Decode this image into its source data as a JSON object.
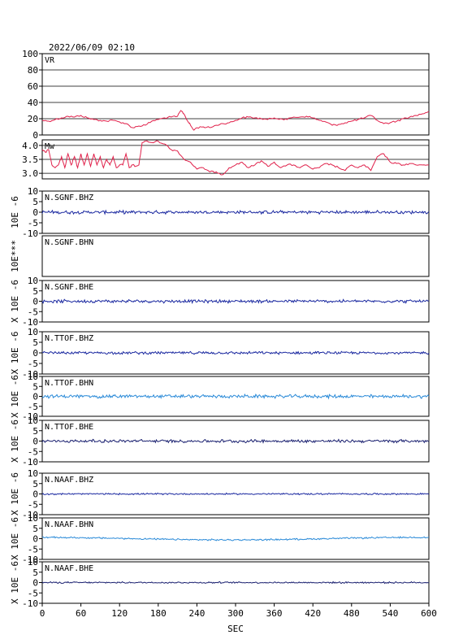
{
  "header": {
    "timestamp": "2022/06/09 02:10"
  },
  "chart_data": {
    "type": "line",
    "x_axis": {
      "label": "SEC",
      "range": [
        0,
        600
      ],
      "ticks": [
        "0",
        "60",
        "120",
        "180",
        "240",
        "300",
        "360",
        "420",
        "480",
        "540",
        "600"
      ]
    },
    "panels": [
      {
        "id": "vr",
        "label": "VR",
        "ylim": [
          0,
          100
        ],
        "ticks": [
          "0",
          "20",
          "40",
          "60",
          "80",
          "100"
        ],
        "tick_values": [
          0,
          20,
          40,
          60,
          80,
          100
        ],
        "grid": true,
        "color": "#e0204a",
        "x": [
          0,
          10,
          20,
          30,
          40,
          50,
          60,
          70,
          80,
          90,
          100,
          110,
          120,
          130,
          140,
          150,
          160,
          170,
          180,
          190,
          200,
          210,
          215,
          220,
          225,
          230,
          235,
          240,
          250,
          260,
          270,
          280,
          290,
          300,
          310,
          320,
          330,
          340,
          350,
          360,
          370,
          380,
          390,
          400,
          410,
          420,
          430,
          440,
          450,
          460,
          470,
          480,
          490,
          500,
          510,
          520,
          530,
          540,
          550,
          560,
          570,
          580,
          590,
          600
        ],
        "values": [
          18,
          17,
          19,
          21,
          23,
          22,
          24,
          21,
          19,
          18,
          17,
          18,
          16,
          14,
          9,
          11,
          12,
          17,
          19,
          21,
          22,
          23,
          30,
          26,
          18,
          12,
          6,
          9,
          10,
          9,
          12,
          14,
          15,
          18,
          21,
          22,
          21,
          20,
          19,
          21,
          20,
          19,
          22,
          22,
          23,
          21,
          18,
          16,
          12,
          13,
          15,
          17,
          19,
          21,
          24,
          18,
          14,
          15,
          17,
          20,
          22,
          24,
          26,
          29
        ]
      },
      {
        "id": "mw",
        "label": "Mw",
        "ylim": [
          2.8,
          4.2
        ],
        "ticks": [
          "3.0",
          "3.5",
          "4.0"
        ],
        "tick_values": [
          3.0,
          3.5,
          4.0
        ],
        "grid": true,
        "color": "#e0204a",
        "x": [
          0,
          5,
          10,
          15,
          20,
          25,
          30,
          35,
          40,
          45,
          50,
          55,
          60,
          65,
          70,
          75,
          80,
          85,
          90,
          95,
          100,
          105,
          110,
          115,
          120,
          125,
          130,
          135,
          140,
          145,
          150,
          155,
          160,
          170,
          180,
          190,
          200,
          210,
          220,
          230,
          240,
          250,
          260,
          270,
          280,
          290,
          300,
          310,
          320,
          330,
          340,
          350,
          360,
          370,
          380,
          390,
          400,
          410,
          420,
          430,
          440,
          450,
          460,
          470,
          480,
          490,
          500,
          510,
          520,
          530,
          540,
          550,
          560,
          570,
          580,
          590,
          600
        ],
        "values": [
          3.85,
          3.75,
          3.85,
          3.3,
          3.2,
          3.3,
          3.6,
          3.2,
          3.7,
          3.3,
          3.6,
          3.2,
          3.7,
          3.3,
          3.7,
          3.25,
          3.7,
          3.3,
          3.6,
          3.2,
          3.5,
          3.3,
          3.6,
          3.2,
          3.3,
          3.3,
          3.7,
          3.2,
          3.3,
          3.25,
          3.3,
          4.1,
          4.15,
          4.1,
          4.15,
          4.05,
          3.85,
          3.8,
          3.5,
          3.4,
          3.15,
          3.2,
          3.05,
          3.05,
          2.95,
          3.2,
          3.3,
          3.4,
          3.2,
          3.3,
          3.45,
          3.25,
          3.4,
          3.2,
          3.3,
          3.3,
          3.2,
          3.3,
          3.15,
          3.2,
          3.35,
          3.3,
          3.2,
          3.1,
          3.3,
          3.2,
          3.3,
          3.1,
          3.6,
          3.7,
          3.4,
          3.35,
          3.3,
          3.35,
          3.3,
          3.3,
          3.3
        ]
      },
      {
        "id": "sgnf-bhz",
        "label": "N.SGNF.BHZ",
        "ylim": [
          -10,
          10
        ],
        "ylabel": "10E -6",
        "ticks": [
          "-10",
          "-5",
          "0",
          "5",
          "10"
        ],
        "tick_values": [
          -10,
          -5,
          0,
          5,
          10
        ],
        "color": "#1a28a0",
        "amplitude": 0.6,
        "offset": 0
      },
      {
        "id": "sgnf-bhn",
        "label": "N.SGNF.BHN",
        "ylim": [
          -10,
          10
        ],
        "ylabel": "10E***",
        "ticks": [],
        "tick_values": [],
        "color": "#1a28a0",
        "amplitude": 0,
        "offset": 0,
        "empty": true
      },
      {
        "id": "sgnf-bhe",
        "label": "N.SGNF.BHE",
        "ylim": [
          -10,
          10
        ],
        "ylabel": "X 10E -6",
        "ticks": [
          "-10",
          "-5",
          "0",
          "5",
          "10"
        ],
        "tick_values": [
          -10,
          -5,
          0,
          5,
          10
        ],
        "color": "#1a28a0",
        "amplitude": 0.6,
        "offset": 0
      },
      {
        "id": "ttof-bhz",
        "label": "N.TTOF.BHZ",
        "ylim": [
          -10,
          10
        ],
        "ylabel": "X 10E -6",
        "ticks": [
          "-10",
          "-5",
          "0",
          "5",
          "10"
        ],
        "tick_values": [
          -10,
          -5,
          0,
          5,
          10
        ],
        "color": "#1a28a0",
        "amplitude": 0.5,
        "offset": 0
      },
      {
        "id": "ttof-bhn",
        "label": "N.TTOF.BHN",
        "ylim": [
          -10,
          10
        ],
        "ylabel": "X 10E -6",
        "ticks": [
          "-10",
          "-5",
          "0",
          "5",
          "10"
        ],
        "tick_values": [
          -10,
          -5,
          0,
          5,
          10
        ],
        "color": "#2a8ad8",
        "amplitude": 0.7,
        "offset": 0
      },
      {
        "id": "ttof-bhe",
        "label": "N.TTOF.BHE",
        "ylim": [
          -10,
          10
        ],
        "ylabel": "X 10E -6",
        "ticks": [
          "-10",
          "-5",
          "0",
          "5",
          "10"
        ],
        "tick_values": [
          -10,
          -5,
          0,
          5,
          10
        ],
        "color": "#1a2070",
        "amplitude": 0.6,
        "offset": 0
      },
      {
        "id": "naaf-bhz",
        "label": "N.NAAF.BHZ",
        "ylim": [
          -10,
          10
        ],
        "ylabel": "X 10E -6",
        "ticks": [
          "-10",
          "-5",
          "0",
          "5",
          "10"
        ],
        "tick_values": [
          -10,
          -5,
          0,
          5,
          10
        ],
        "color": "#1a28a0",
        "amplitude": 0.3,
        "offset": 0
      },
      {
        "id": "naaf-bhn",
        "label": "N.NAAF.BHN",
        "ylim": [
          -10,
          10
        ],
        "ylabel": "X 10E -6",
        "ticks": [
          "-10",
          "-5",
          "0",
          "5",
          "10"
        ],
        "tick_values": [
          -10,
          -5,
          0,
          5,
          10
        ],
        "color": "#2a8ad8",
        "amplitude": 0.3,
        "offset": 0,
        "drift": true
      },
      {
        "id": "naaf-bhe",
        "label": "N.NAAF.BHE",
        "ylim": [
          -10,
          10
        ],
        "ylabel": "X 10E -6",
        "ticks": [
          "-10",
          "-5",
          "0",
          "5",
          "10"
        ],
        "tick_values": [
          -10,
          -5,
          0,
          5,
          10
        ],
        "color": "#1a2070",
        "amplitude": 0.3,
        "offset": 0
      }
    ]
  }
}
